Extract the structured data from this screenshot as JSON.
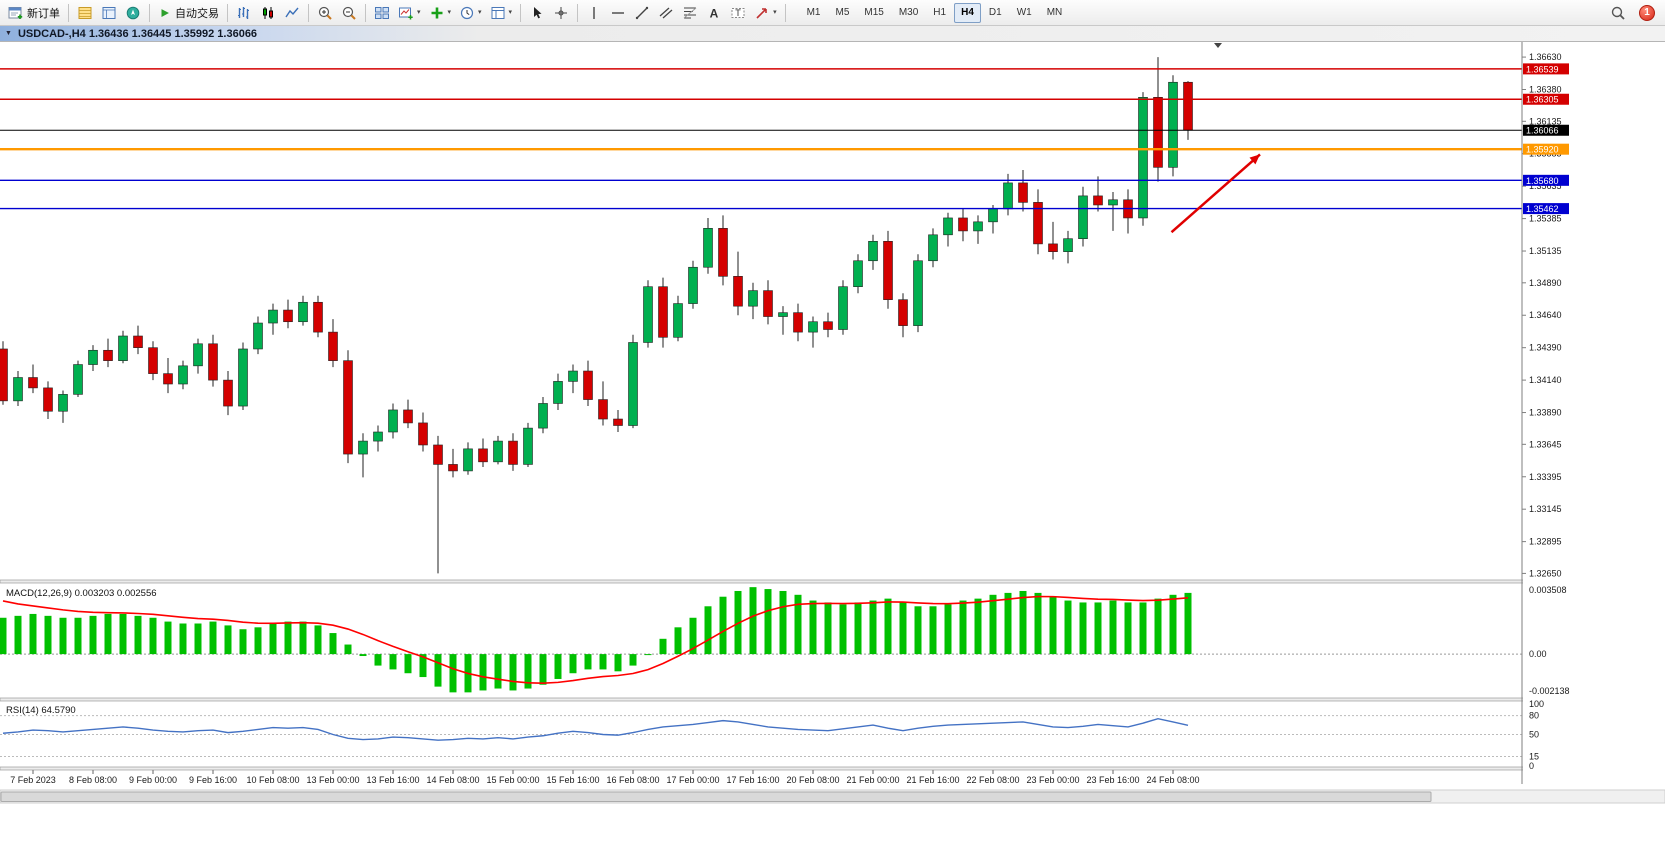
{
  "app": {
    "toolbar": {
      "new_order": "新订单",
      "autotrade": "自动交易",
      "timeframes": [
        "M1",
        "M5",
        "M15",
        "M30",
        "H1",
        "H4",
        "D1",
        "W1",
        "MN"
      ],
      "active_timeframe": "H4",
      "notification_count": "1"
    },
    "chart_title": "USDCAD-,H4  1.36436 1.36445 1.35992 1.36066"
  },
  "chart_data": {
    "type": "candlestick",
    "title": "USDCAD-,H4",
    "symbol": "USDCAD",
    "timeframe": "H4",
    "ohlc_display": {
      "open": "1.36436",
      "high": "1.36445",
      "low": "1.35992",
      "close": "1.36066"
    },
    "price_range": [
      1.3263,
      1.367
    ],
    "price_axis_ticks": [
      "1.36630",
      "1.36380",
      "1.36135",
      "1.35885",
      "1.35635",
      "1.35385",
      "1.35135",
      "1.34890",
      "1.34640",
      "1.34390",
      "1.34140",
      "1.33890",
      "1.33645",
      "1.33395",
      "1.33145",
      "1.32895",
      "1.32650"
    ],
    "hlines": [
      {
        "price": 1.36539,
        "label": "1.36539",
        "color": "#D40000",
        "thickness": 1.4,
        "role": "resistance"
      },
      {
        "price": 1.36305,
        "label": "1.36305",
        "color": "#D40000",
        "thickness": 1.4,
        "role": "resistance"
      },
      {
        "price": 1.36066,
        "label": "1.36066",
        "color": "#000000",
        "thickness": 1.0,
        "role": "current-price"
      },
      {
        "price": 1.3592,
        "label": "1.35920",
        "color": "#FF9900",
        "thickness": 2.4,
        "role": "level"
      },
      {
        "price": 1.3568,
        "label": "1.35680",
        "color": "#0000D0",
        "thickness": 1.4,
        "role": "support"
      },
      {
        "price": 1.35462,
        "label": "1.35462",
        "color": "#0000D0",
        "thickness": 1.4,
        "role": "support"
      }
    ],
    "arrow": {
      "from": {
        "index": 77.9,
        "price": 1.3528
      },
      "to": {
        "index": 83.8,
        "price": 1.3588
      },
      "color": "#E00000",
      "width": 2.5
    },
    "colors": {
      "up": "#00B050",
      "down": "#D40000",
      "wick": "#222222",
      "macd": "#00C000",
      "macd_signal": "#FF0000",
      "rsi": "#4472C4"
    },
    "time_label_first_index": 2,
    "time_label_step": 4,
    "time_labels": [
      "7 Feb 2023",
      "8 Feb 08:00",
      "9 Feb 00:00",
      "9 Feb 16:00",
      "10 Feb 08:00",
      "13 Feb 00:00",
      "13 Feb 16:00",
      "14 Feb 08:00",
      "15 Feb 00:00",
      "15 Feb 16:00",
      "16 Feb 08:00",
      "17 Feb 00:00",
      "17 Feb 16:00",
      "20 Feb 08:00",
      "21 Feb 00:00",
      "21 Feb 16:00",
      "22 Feb 08:00",
      "23 Feb 00:00",
      "23 Feb 16:00",
      "24 Feb 08:00"
    ],
    "candles": [
      [
        1.3438,
        1.3444,
        1.3395,
        1.3398
      ],
      [
        1.3398,
        1.3421,
        1.3394,
        1.3416
      ],
      [
        1.3416,
        1.3426,
        1.3404,
        1.3408
      ],
      [
        1.3408,
        1.3413,
        1.3384,
        1.339
      ],
      [
        1.339,
        1.3406,
        1.3381,
        1.3403
      ],
      [
        1.3403,
        1.3429,
        1.3401,
        1.3426
      ],
      [
        1.3426,
        1.3441,
        1.3421,
        1.3437
      ],
      [
        1.3437,
        1.3446,
        1.3424,
        1.3429
      ],
      [
        1.3429,
        1.3452,
        1.3427,
        1.3448
      ],
      [
        1.3448,
        1.3456,
        1.3434,
        1.3439
      ],
      [
        1.3439,
        1.3444,
        1.3414,
        1.3419
      ],
      [
        1.3419,
        1.3431,
        1.3404,
        1.3411
      ],
      [
        1.3411,
        1.3429,
        1.3407,
        1.3425
      ],
      [
        1.3425,
        1.3446,
        1.3419,
        1.3442
      ],
      [
        1.3442,
        1.3449,
        1.3409,
        1.3414
      ],
      [
        1.3414,
        1.3421,
        1.3387,
        1.3394
      ],
      [
        1.3394,
        1.3443,
        1.3391,
        1.3438
      ],
      [
        1.3438,
        1.3463,
        1.3434,
        1.3458
      ],
      [
        1.3458,
        1.3473,
        1.3449,
        1.3468
      ],
      [
        1.3468,
        1.3476,
        1.3454,
        1.3459
      ],
      [
        1.3459,
        1.3479,
        1.3456,
        1.3474
      ],
      [
        1.3474,
        1.3479,
        1.3447,
        1.3451
      ],
      [
        1.3451,
        1.3461,
        1.3424,
        1.3429
      ],
      [
        1.3429,
        1.3437,
        1.335,
        1.3357
      ],
      [
        1.3357,
        1.3373,
        1.3339,
        1.3367
      ],
      [
        1.3367,
        1.3379,
        1.3359,
        1.3374
      ],
      [
        1.3374,
        1.3396,
        1.3369,
        1.3391
      ],
      [
        1.3391,
        1.3399,
        1.3377,
        1.3381
      ],
      [
        1.3381,
        1.3389,
        1.3359,
        1.3364
      ],
      [
        1.3364,
        1.3371,
        1.3265,
        1.3349
      ],
      [
        1.3349,
        1.3361,
        1.3339,
        1.3344
      ],
      [
        1.3344,
        1.3366,
        1.3341,
        1.3361
      ],
      [
        1.3361,
        1.3369,
        1.3347,
        1.3351
      ],
      [
        1.3351,
        1.3371,
        1.3349,
        1.3367
      ],
      [
        1.3367,
        1.3373,
        1.3344,
        1.3349
      ],
      [
        1.3349,
        1.3381,
        1.3347,
        1.3377
      ],
      [
        1.3377,
        1.3401,
        1.3373,
        1.3396
      ],
      [
        1.3396,
        1.3419,
        1.3391,
        1.3413
      ],
      [
        1.3413,
        1.3426,
        1.3404,
        1.3421
      ],
      [
        1.3421,
        1.3429,
        1.3394,
        1.3399
      ],
      [
        1.3399,
        1.3413,
        1.3379,
        1.3384
      ],
      [
        1.3384,
        1.3391,
        1.3374,
        1.3379
      ],
      [
        1.3379,
        1.3449,
        1.3377,
        1.3443
      ],
      [
        1.3443,
        1.3491,
        1.3439,
        1.3486
      ],
      [
        1.3486,
        1.3493,
        1.3439,
        1.3447
      ],
      [
        1.3447,
        1.3479,
        1.3444,
        1.3473
      ],
      [
        1.3473,
        1.3506,
        1.3469,
        1.3501
      ],
      [
        1.3501,
        1.3539,
        1.3496,
        1.3531
      ],
      [
        1.3531,
        1.3541,
        1.3487,
        1.3494
      ],
      [
        1.3494,
        1.3513,
        1.3464,
        1.3471
      ],
      [
        1.3471,
        1.3489,
        1.3461,
        1.3483
      ],
      [
        1.3483,
        1.3491,
        1.3457,
        1.3463
      ],
      [
        1.3463,
        1.3471,
        1.3449,
        1.3466
      ],
      [
        1.3466,
        1.3473,
        1.3444,
        1.3451
      ],
      [
        1.3451,
        1.3463,
        1.3439,
        1.3459
      ],
      [
        1.3459,
        1.3466,
        1.3447,
        1.3453
      ],
      [
        1.3453,
        1.3491,
        1.3449,
        1.3486
      ],
      [
        1.3486,
        1.3511,
        1.3481,
        1.3506
      ],
      [
        1.3506,
        1.3526,
        1.3499,
        1.3521
      ],
      [
        1.3521,
        1.3529,
        1.3469,
        1.3476
      ],
      [
        1.3476,
        1.3481,
        1.3447,
        1.3456
      ],
      [
        1.3456,
        1.3511,
        1.3451,
        1.3506
      ],
      [
        1.3506,
        1.3531,
        1.3501,
        1.3526
      ],
      [
        1.3526,
        1.3543,
        1.3517,
        1.3539
      ],
      [
        1.3539,
        1.3546,
        1.3521,
        1.3529
      ],
      [
        1.3529,
        1.3541,
        1.3519,
        1.3536
      ],
      [
        1.3536,
        1.3549,
        1.3527,
        1.3546
      ],
      [
        1.3546,
        1.3573,
        1.3541,
        1.3566
      ],
      [
        1.3566,
        1.3576,
        1.3544,
        1.3551
      ],
      [
        1.3551,
        1.3561,
        1.3511,
        1.3519
      ],
      [
        1.3519,
        1.3536,
        1.3507,
        1.3513
      ],
      [
        1.3513,
        1.3529,
        1.3504,
        1.3523
      ],
      [
        1.3523,
        1.3563,
        1.3517,
        1.3556
      ],
      [
        1.3556,
        1.3571,
        1.3544,
        1.3549
      ],
      [
        1.3549,
        1.3559,
        1.3529,
        1.3553
      ],
      [
        1.3553,
        1.3561,
        1.3527,
        1.3539
      ],
      [
        1.3539,
        1.3636,
        1.3533,
        1.3632
      ],
      [
        1.3632,
        1.3663,
        1.3567,
        1.3578
      ],
      [
        1.3578,
        1.3649,
        1.3571,
        1.36436
      ],
      [
        1.36436,
        1.36445,
        1.35992,
        1.36066
      ]
    ],
    "indicators": {
      "macd": {
        "label": "MACD(12,26,9) 0.003203 0.002556",
        "axis_max": "0.003508",
        "axis_zero": "0.00",
        "axis_min": "-0.002138",
        "range": [
          -0.002138,
          0.003508
        ],
        "signal_seed": 0.003,
        "values": [
          0.0019,
          0.002,
          0.0021,
          0.002,
          0.0019,
          0.0019,
          0.002,
          0.0021,
          0.0021,
          0.002,
          0.0019,
          0.0017,
          0.0016,
          0.0016,
          0.0017,
          0.0015,
          0.0013,
          0.0014,
          0.0016,
          0.0017,
          0.0017,
          0.0015,
          0.0011,
          0.0005,
          -0.0001,
          -0.0006,
          -0.0008,
          -0.001,
          -0.0012,
          -0.0017,
          -0.002,
          -0.002,
          -0.0019,
          -0.0018,
          -0.0019,
          -0.0018,
          -0.0016,
          -0.0013,
          -0.001,
          -0.0008,
          -0.0008,
          -0.0009,
          -0.0006,
          0.0,
          0.0008,
          0.0014,
          0.0019,
          0.0025,
          0.003,
          0.0033,
          0.0035,
          0.0034,
          0.0033,
          0.0031,
          0.0028,
          0.0027,
          0.0026,
          0.0027,
          0.0028,
          0.0029,
          0.0027,
          0.0025,
          0.0025,
          0.0026,
          0.0028,
          0.0029,
          0.0031,
          0.0032,
          0.0033,
          0.0032,
          0.003,
          0.0028,
          0.0027,
          0.0027,
          0.0028,
          0.0027,
          0.0027,
          0.0029,
          0.0031,
          0.0032
        ]
      },
      "rsi": {
        "label": "RSI(14) 64.5790",
        "axis_labels": [
          "100",
          "80",
          "50",
          "15",
          "0"
        ],
        "levels": [
          80,
          50,
          15
        ],
        "range": [
          0,
          100
        ],
        "values": [
          52,
          54,
          57,
          56,
          54,
          56,
          58,
          60,
          62,
          60,
          57,
          55,
          54,
          56,
          57,
          53,
          55,
          58,
          61,
          60,
          61,
          58,
          50,
          44,
          42,
          43,
          46,
          45,
          43,
          41,
          42,
          44,
          43,
          45,
          43,
          46,
          48,
          52,
          55,
          53,
          50,
          49,
          53,
          58,
          62,
          64,
          66,
          69,
          72,
          70,
          66,
          62,
          60,
          58,
          57,
          56,
          59,
          62,
          65,
          60,
          56,
          60,
          63,
          65,
          66,
          67,
          68,
          69,
          70,
          66,
          62,
          61,
          63,
          66,
          64,
          62,
          68,
          75,
          70,
          64.6
        ]
      }
    }
  }
}
